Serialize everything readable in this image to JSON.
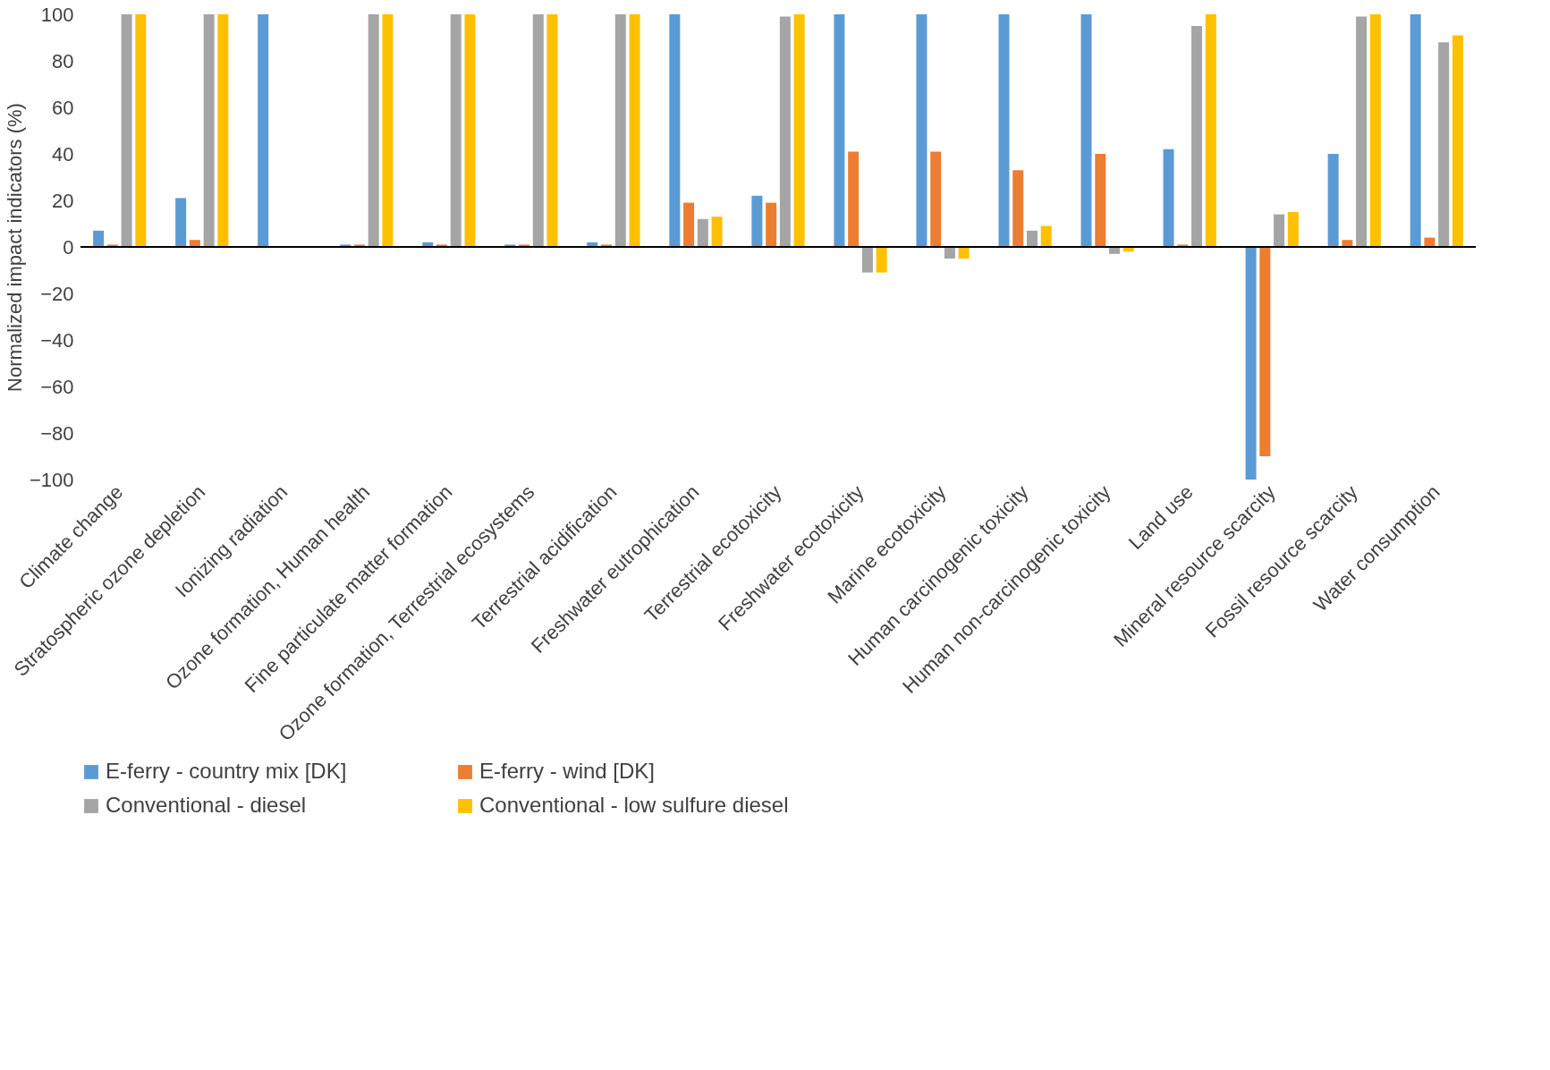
{
  "chart_data": {
    "type": "bar",
    "ylabel": "Normalized impact indicators (%)",
    "categories": [
      "Climate change",
      "Stratospheric ozone depletion",
      "Ionizing radiation",
      "Ozone formation, Human health",
      "Fine particulate matter formation",
      "Ozone formation, Terrestrial ecosystems",
      "Terrestrial acidification",
      "Freshwater eutrophication",
      "Terrestrial ecotoxicity",
      "Freshwater ecotoxicity",
      "Marine ecotoxicity",
      "Human carcinogenic toxicity",
      "Human non-carcinogenic toxicity",
      "Land use",
      "Mineral resource scarcity",
      "Fossil resource scarcity",
      "Water consumption"
    ],
    "series": [
      {
        "name": "E-ferry - country mix [DK]",
        "color": "#5b9bd5",
        "values": [
          7,
          21,
          100,
          1,
          2,
          1,
          2,
          100,
          22,
          100,
          100,
          100,
          100,
          42,
          -100,
          40,
          100
        ]
      },
      {
        "name": "E-ferry - wind [DK]",
        "color": "#ed7d31",
        "values": [
          1,
          3,
          0,
          1,
          1,
          1,
          1,
          19,
          19,
          41,
          41,
          33,
          40,
          1,
          -90,
          3,
          4
        ]
      },
      {
        "name": "Conventional - diesel",
        "color": "#a5a5a5",
        "values": [
          100,
          100,
          0,
          100,
          100,
          100,
          100,
          12,
          99,
          -11,
          -5,
          7,
          -3,
          95,
          14,
          99,
          88
        ]
      },
      {
        "name": "Conventional - low sulfure diesel",
        "color": "#ffc000",
        "values": [
          100,
          100,
          0,
          100,
          100,
          100,
          100,
          13,
          100,
          -11,
          -5,
          9,
          -2,
          100,
          15,
          100,
          91
        ]
      }
    ],
    "ylim": [
      -100,
      100
    ],
    "yticks": [
      -100,
      -80,
      -60,
      -40,
      -20,
      0,
      20,
      40,
      60,
      80,
      100
    ],
    "ref_lines": [
      {
        "axis": "y",
        "value": 0,
        "color": "#000000"
      }
    ],
    "grid": false,
    "legend": "bottom"
  }
}
